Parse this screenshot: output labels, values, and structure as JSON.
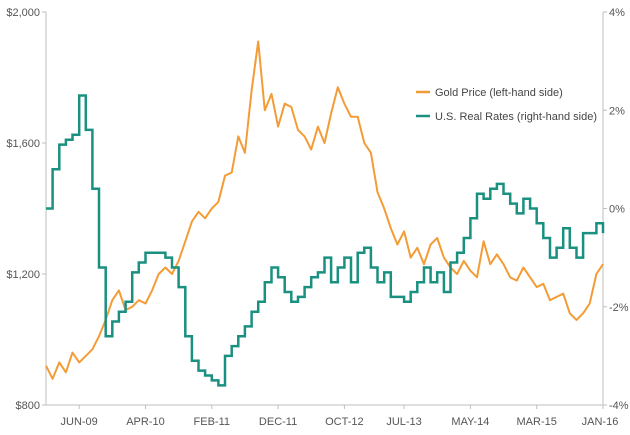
{
  "chart_data": {
    "type": "line",
    "title": "",
    "xlabel": "",
    "ylabel_left": "",
    "ylabel_right": "",
    "x_tick_labels": [
      "JUN-09",
      "APR-10",
      "FEB-11",
      "DEC-11",
      "OCT-12",
      "JUL-13",
      "MAY-14",
      "MAR-15",
      "JAN-16"
    ],
    "y_left": {
      "ticks": [
        "$800",
        "$1,200",
        "$1,600",
        "$2,000"
      ],
      "ylim": [
        800,
        2000
      ]
    },
    "y_right": {
      "ticks": [
        "-4%",
        "-2%",
        "0%",
        "2%",
        "4%"
      ],
      "ylim": [
        -4,
        4
      ]
    },
    "grid": false,
    "legend_position": "top-right",
    "x_units": "months since Jan 2009",
    "series": [
      {
        "name": "Gold Price (left-hand side)",
        "axis": "left",
        "color": "#f39c35",
        "x": [
          0,
          1,
          2,
          3,
          4,
          5,
          6,
          7,
          8,
          9,
          10,
          11,
          12,
          13,
          14,
          15,
          16,
          17,
          18,
          19,
          20,
          21,
          22,
          23,
          24,
          25,
          26,
          27,
          28,
          29,
          30,
          31,
          32,
          33,
          34,
          35,
          36,
          37,
          38,
          39,
          40,
          41,
          42,
          43,
          44,
          45,
          46,
          47,
          48,
          49,
          50,
          51,
          52,
          53,
          54,
          55,
          56,
          57,
          58,
          59,
          60,
          61,
          62,
          63,
          64,
          65,
          66,
          67,
          68,
          69,
          70,
          71,
          72,
          73,
          74,
          75,
          76,
          77,
          78,
          79,
          80,
          81,
          82,
          83,
          84
        ],
        "values": [
          920,
          880,
          930,
          900,
          960,
          930,
          950,
          970,
          1010,
          1060,
          1120,
          1150,
          1090,
          1100,
          1120,
          1110,
          1150,
          1200,
          1220,
          1200,
          1240,
          1300,
          1360,
          1390,
          1370,
          1400,
          1420,
          1500,
          1510,
          1620,
          1570,
          1760,
          1910,
          1700,
          1750,
          1650,
          1720,
          1710,
          1640,
          1620,
          1580,
          1650,
          1600,
          1690,
          1770,
          1720,
          1680,
          1680,
          1600,
          1570,
          1450,
          1400,
          1340,
          1290,
          1330,
          1250,
          1280,
          1230,
          1290,
          1310,
          1250,
          1220,
          1200,
          1240,
          1210,
          1190,
          1300,
          1230,
          1260,
          1230,
          1190,
          1180,
          1220,
          1190,
          1160,
          1170,
          1120,
          1130,
          1140,
          1080,
          1060,
          1080,
          1110,
          1200,
          1230
        ],
        "x_labels_note": ""
      },
      {
        "name": "U.S. Real Rates (right-hand side)",
        "axis": "right",
        "color": "#1a9081",
        "x": [
          0,
          1,
          2,
          3,
          4,
          5,
          6,
          7,
          8,
          9,
          10,
          11,
          12,
          13,
          14,
          15,
          16,
          17,
          18,
          19,
          20,
          21,
          22,
          23,
          24,
          25,
          26,
          27,
          28,
          29,
          30,
          31,
          32,
          33,
          34,
          35,
          36,
          37,
          38,
          39,
          40,
          41,
          42,
          43,
          44,
          45,
          46,
          47,
          48,
          49,
          50,
          51,
          52,
          53,
          54,
          55,
          56,
          57,
          58,
          59,
          60,
          61,
          62,
          63,
          64,
          65,
          66,
          67,
          68,
          69,
          70,
          71,
          72,
          73,
          74,
          75,
          76,
          77,
          78,
          79,
          80,
          81,
          82,
          83,
          84
        ],
        "values": [
          0.0,
          0.8,
          1.3,
          1.4,
          1.5,
          2.3,
          1.6,
          0.4,
          -1.2,
          -2.6,
          -2.3,
          -2.1,
          -1.9,
          -1.3,
          -1.1,
          -0.9,
          -0.9,
          -0.9,
          -1.0,
          -1.2,
          -1.6,
          -2.6,
          -3.1,
          -3.3,
          -3.4,
          -3.5,
          -3.6,
          -3.0,
          -2.8,
          -2.6,
          -2.4,
          -2.1,
          -1.9,
          -1.5,
          -1.2,
          -1.4,
          -1.7,
          -1.9,
          -1.8,
          -1.6,
          -1.4,
          -1.3,
          -1.0,
          -1.5,
          -1.2,
          -1.0,
          -1.5,
          -0.9,
          -0.8,
          -1.2,
          -1.5,
          -1.3,
          -1.8,
          -1.8,
          -1.9,
          -1.7,
          -1.5,
          -1.2,
          -1.5,
          -1.3,
          -1.7,
          -1.1,
          -0.9,
          -0.6,
          -0.2,
          0.3,
          0.2,
          0.4,
          0.5,
          0.3,
          0.1,
          -0.1,
          0.2,
          0.0,
          -0.3,
          -0.6,
          -1.0,
          -0.8,
          -0.4,
          -0.8,
          -1.0,
          -0.5,
          -0.5,
          -0.3,
          -0.5
        ]
      }
    ]
  }
}
